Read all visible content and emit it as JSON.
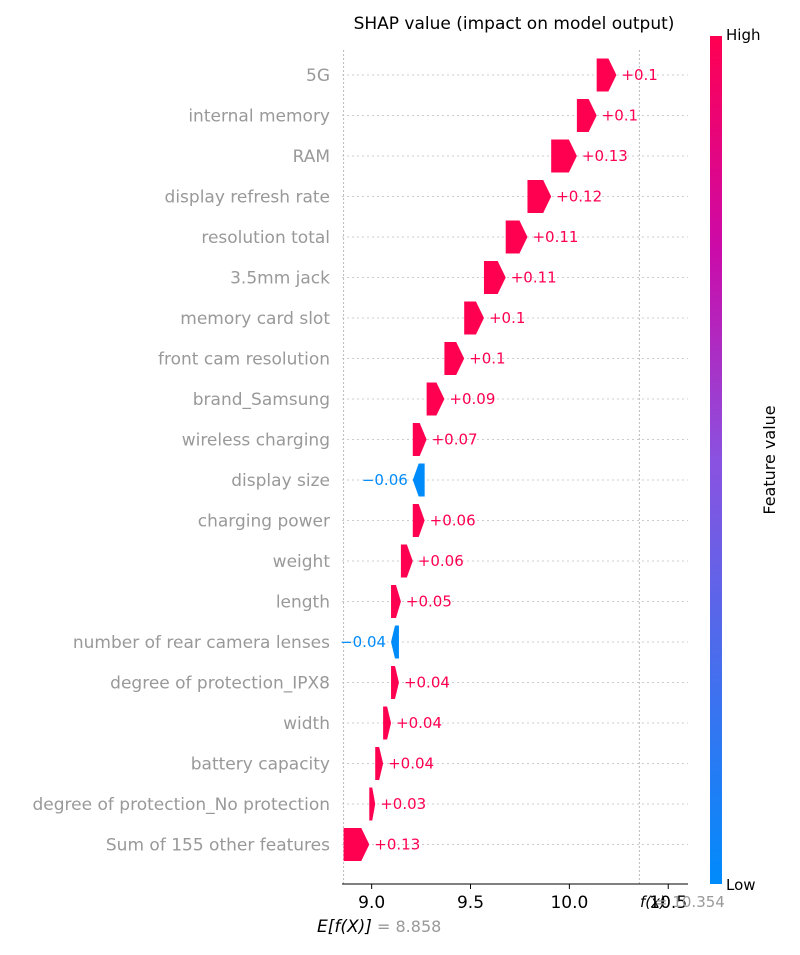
{
  "chart_data": {
    "type": "waterfall",
    "title": "SHAP value (impact on model output)",
    "expected_value": 8.858,
    "expected_label": "E[f(X)]",
    "expected_value_text": "= 8.858",
    "fx_value": 10.354,
    "fx_label": "f(x)",
    "fx_value_text": "= 10.354",
    "xlim": [
      8.85,
      10.6
    ],
    "ticks": [
      9.0,
      9.5,
      10.0,
      10.5
    ],
    "tick_labels": [
      "9.0",
      "9.5",
      "10.0",
      "10.5"
    ],
    "features": [
      {
        "name": "5G",
        "value": 0.1,
        "label": "+0.1"
      },
      {
        "name": "internal memory",
        "value": 0.1,
        "label": "+0.1"
      },
      {
        "name": "RAM",
        "value": 0.13,
        "label": "+0.13"
      },
      {
        "name": "display refresh rate",
        "value": 0.12,
        "label": "+0.12"
      },
      {
        "name": "resolution total",
        "value": 0.11,
        "label": "+0.11"
      },
      {
        "name": "3.5mm jack",
        "value": 0.11,
        "label": "+0.11"
      },
      {
        "name": "memory card slot",
        "value": 0.1,
        "label": "+0.1"
      },
      {
        "name": "front cam resolution",
        "value": 0.1,
        "label": "+0.1"
      },
      {
        "name": "brand_Samsung",
        "value": 0.09,
        "label": "+0.09"
      },
      {
        "name": "wireless charging",
        "value": 0.07,
        "label": "+0.07"
      },
      {
        "name": "display size",
        "value": -0.06,
        "label": "−0.06"
      },
      {
        "name": "charging power",
        "value": 0.06,
        "label": "+0.06"
      },
      {
        "name": "weight",
        "value": 0.06,
        "label": "+0.06"
      },
      {
        "name": "length",
        "value": 0.05,
        "label": "+0.05"
      },
      {
        "name": "number of rear camera lenses",
        "value": -0.04,
        "label": "−0.04"
      },
      {
        "name": "degree of protection_IPX8",
        "value": 0.04,
        "label": "+0.04"
      },
      {
        "name": "width",
        "value": 0.04,
        "label": "+0.04"
      },
      {
        "name": "battery capacity",
        "value": 0.04,
        "label": "+0.04"
      },
      {
        "name": "degree of protection_No protection",
        "value": 0.03,
        "label": "+0.03"
      },
      {
        "name": "Sum of 155 other features",
        "value": 0.13,
        "label": "+0.13"
      }
    ],
    "colorbar": {
      "label": "Feature value",
      "high": "High",
      "low": "Low"
    },
    "colors": {
      "positive": "#ff0051",
      "negative": "#008bfb",
      "label": "#999999"
    }
  }
}
